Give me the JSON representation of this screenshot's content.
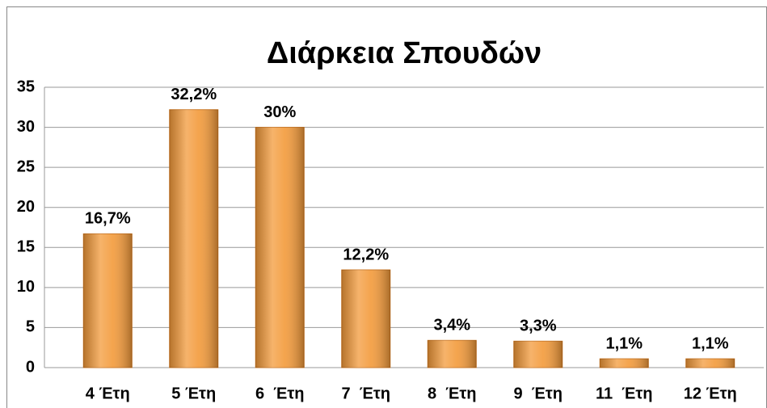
{
  "chart_data": {
    "type": "bar",
    "title": "Διάρκεια Σπουδών",
    "categories": [
      "4 Έτη",
      "5 Έτη",
      "6  Έτη",
      "7  Έτη",
      "8  Έτη",
      "9  Έτη",
      "11  Έτη",
      "12 Έτη"
    ],
    "values": [
      16.7,
      32.2,
      30,
      12.2,
      3.4,
      3.3,
      1.1,
      1.1
    ],
    "value_labels": [
      "16,7%",
      "32,2%",
      "30%",
      "12,2%",
      "3,4%",
      "3,3%",
      "1,1%",
      "1,1%"
    ],
    "color": "#f39a3a",
    "ylim": [
      0,
      35
    ],
    "yticks": [
      0,
      5,
      10,
      15,
      20,
      25,
      30,
      35
    ],
    "grid": true
  }
}
